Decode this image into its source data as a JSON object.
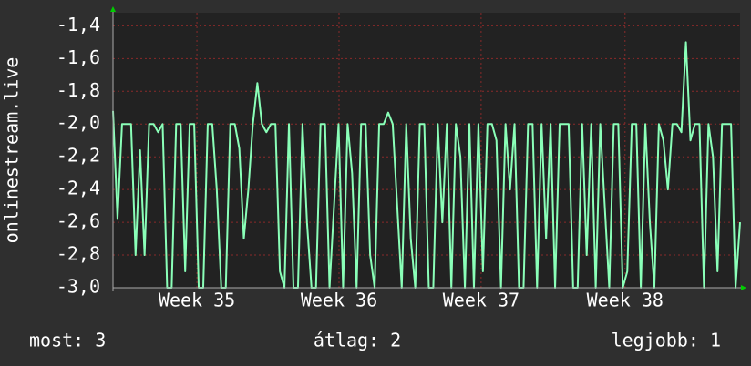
{
  "chart_data": {
    "type": "line",
    "y_label": "onlinestream.live",
    "annotations": [
      "most: 3",
      "átlag: 2",
      "legjobb: 1"
    ],
    "x": [
      0,
      1,
      2,
      3,
      4,
      5,
      6,
      7,
      8,
      9,
      10,
      11,
      12,
      13,
      14,
      15,
      16,
      17,
      18,
      19,
      20,
      21,
      22,
      23,
      24,
      25,
      26,
      27,
      28,
      29,
      30,
      31,
      32,
      33,
      34,
      35,
      36,
      37,
      38,
      39,
      40,
      41,
      42,
      43,
      44,
      45,
      46,
      47,
      48,
      49,
      50,
      51,
      52,
      53,
      54,
      55,
      56,
      57,
      58,
      59,
      60,
      61,
      62,
      63,
      64,
      65,
      66,
      67,
      68,
      69,
      70,
      71,
      72,
      73,
      74,
      75,
      76,
      77,
      78,
      79,
      80,
      81,
      82,
      83,
      84,
      85,
      86,
      87,
      88,
      89,
      90,
      91,
      92,
      93,
      94,
      95,
      96,
      97,
      98,
      99,
      100,
      101,
      102,
      103,
      104,
      105,
      106,
      107,
      108,
      109,
      110,
      111,
      112,
      113,
      114,
      115,
      116,
      117,
      118,
      119,
      120,
      121,
      122,
      123,
      124,
      125,
      126,
      127,
      128,
      129,
      130,
      131,
      132,
      133,
      134,
      135,
      136,
      137,
      138,
      139
    ],
    "series": [
      {
        "name": "onlinestream.live",
        "color": "#8affb8",
        "values": [
          -1.92,
          -2.58,
          -2,
          -2,
          -2,
          -2.8,
          -2.16,
          -2.8,
          -2,
          -2,
          -2.05,
          -2,
          -3,
          -3,
          -2,
          -2,
          -2.9,
          -2,
          -2,
          -3,
          -3,
          -2,
          -2,
          -2.4,
          -3,
          -3,
          -2,
          -2,
          -2.15,
          -2.7,
          -2.4,
          -2,
          -1.75,
          -2,
          -2.05,
          -2,
          -2,
          -2.9,
          -3,
          -2,
          -3,
          -3,
          -2,
          -2.6,
          -3,
          -3,
          -2,
          -2,
          -3,
          -2.5,
          -2,
          -3,
          -2,
          -2.3,
          -3,
          -2,
          -2,
          -2.8,
          -3,
          -2,
          -2,
          -1.93,
          -2,
          -2.5,
          -3,
          -2,
          -2.7,
          -3,
          -2,
          -2,
          -3,
          -3,
          -2,
          -2.6,
          -2,
          -3,
          -2,
          -2.2,
          -3,
          -2,
          -3,
          -2,
          -2.9,
          -2,
          -2,
          -2.1,
          -3,
          -2,
          -2.4,
          -2,
          -3,
          -3,
          -2,
          -2,
          -3,
          -2,
          -2.7,
          -2,
          -3,
          -2,
          -2,
          -2,
          -3,
          -3,
          -2,
          -2.8,
          -2,
          -3,
          -2,
          -2.5,
          -3,
          -2,
          -2,
          -3,
          -2.9,
          -2,
          -2,
          -3,
          -2,
          -2.6,
          -3,
          -2,
          -2.1,
          -2.4,
          -2,
          -2,
          -2.05,
          -1.5,
          -2.1,
          -2,
          -2,
          -3,
          -2,
          -2.2,
          -2.9,
          -2,
          -2,
          -2,
          -3,
          -2.6
        ]
      }
    ],
    "xlim": [
      0,
      139
    ],
    "xticks": [
      {
        "value": 18.6,
        "label": "Week 35"
      },
      {
        "value": 50.1,
        "label": "Week 36"
      },
      {
        "value": 81.6,
        "label": "Week 37"
      },
      {
        "value": 113.5,
        "label": "Week 38"
      }
    ],
    "ylim": [
      -3.0,
      -1.32
    ],
    "yticks": [
      {
        "value": -3.0,
        "label": "-3,0"
      },
      {
        "value": -2.8,
        "label": "-2,8"
      },
      {
        "value": -2.6,
        "label": "-2,6"
      },
      {
        "value": -2.4,
        "label": "-2,4"
      },
      {
        "value": -2.2,
        "label": "-2,2"
      },
      {
        "value": -2.0,
        "label": "-2,0"
      },
      {
        "value": -1.8,
        "label": "-1,8"
      },
      {
        "value": -1.6,
        "label": "-1,6"
      },
      {
        "value": -1.4,
        "label": "-1,4"
      }
    ],
    "grid": true
  }
}
